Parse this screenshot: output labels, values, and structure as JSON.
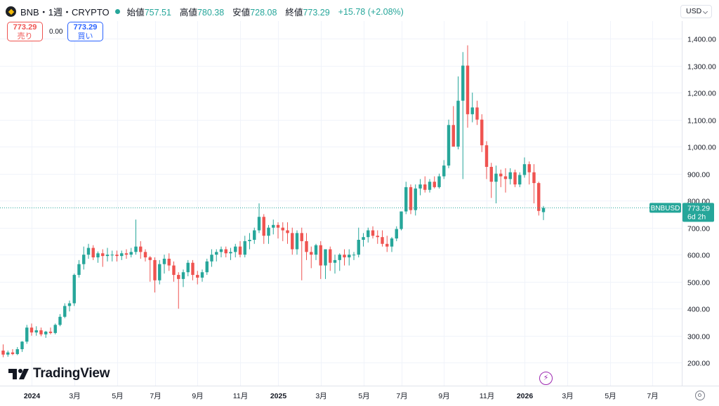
{
  "header": {
    "symbol": "BNB・1週・CRYPTO",
    "open_label": "始値",
    "open_value": "757.51",
    "high_label": "高値",
    "high_value": "780.38",
    "low_label": "安値",
    "low_value": "728.08",
    "close_label": "終値",
    "close_value": "773.29",
    "change": "+15.78 (+2.08%)"
  },
  "trade": {
    "sell_price": "773.29",
    "sell_label": "売り",
    "spread": "0.00",
    "buy_price": "773.29",
    "buy_label": "買い"
  },
  "currency": "USD",
  "branding": "TradingView",
  "colors": {
    "up": "#26a69a",
    "down": "#ef5350",
    "accent_purple": "#9c27b0"
  },
  "chart_data": {
    "type": "candlestick",
    "title": "BNB・1週・CRYPTO",
    "ylim": [
      115,
      1465
    ],
    "y_ticks": [
      {
        "v": 200,
        "label": "200.00"
      },
      {
        "v": 300,
        "label": "300.00"
      },
      {
        "v": 400,
        "label": "400.00"
      },
      {
        "v": 500,
        "label": "500.00"
      },
      {
        "v": 600,
        "label": "600.00"
      },
      {
        "v": 700,
        "label": "700.00"
      },
      {
        "v": 800,
        "label": "800.00"
      },
      {
        "v": 900,
        "label": "900.00"
      },
      {
        "v": 1000,
        "label": "1,000.00"
      },
      {
        "v": 1100,
        "label": "1,100.00"
      },
      {
        "v": 1200,
        "label": "1,200.00"
      },
      {
        "v": 1300,
        "label": "1,300.00"
      },
      {
        "v": 1400,
        "label": "1,400.00"
      }
    ],
    "x_ticks": [
      {
        "i": 6,
        "label": "2024",
        "bold": true
      },
      {
        "i": 15,
        "label": "3月"
      },
      {
        "i": 24,
        "label": "5月"
      },
      {
        "i": 32,
        "label": "7月"
      },
      {
        "i": 41,
        "label": "9月"
      },
      {
        "i": 50,
        "label": "11月"
      },
      {
        "i": 58,
        "label": "2025",
        "bold": true
      },
      {
        "i": 67,
        "label": "3月"
      },
      {
        "i": 76,
        "label": "5月"
      },
      {
        "i": 84,
        "label": "7月"
      },
      {
        "i": 93,
        "label": "9月"
      },
      {
        "i": 102,
        "label": "11月"
      },
      {
        "i": 110,
        "label": "2026",
        "bold": true
      },
      {
        "i": 119,
        "label": "3月"
      },
      {
        "i": 128,
        "label": "5月"
      },
      {
        "i": 137,
        "label": "7月"
      }
    ],
    "last_price": {
      "value": 773.29,
      "symbol": "BNBUSD",
      "label": "773.29",
      "countdown": "6d 2h"
    },
    "candles": [
      [
        245,
        268,
        220,
        230
      ],
      [
        230,
        245,
        222,
        238
      ],
      [
        238,
        250,
        228,
        232
      ],
      [
        232,
        258,
        228,
        250
      ],
      [
        250,
        280,
        240,
        278
      ],
      [
        278,
        340,
        270,
        330
      ],
      [
        330,
        345,
        300,
        312
      ],
      [
        312,
        335,
        300,
        320
      ],
      [
        320,
        330,
        298,
        305
      ],
      [
        305,
        318,
        292,
        315
      ],
      [
        315,
        330,
        305,
        310
      ],
      [
        310,
        345,
        305,
        340
      ],
      [
        340,
        380,
        335,
        370
      ],
      [
        370,
        420,
        365,
        410
      ],
      [
        410,
        430,
        390,
        420
      ],
      [
        420,
        530,
        410,
        525
      ],
      [
        525,
        580,
        515,
        565
      ],
      [
        565,
        630,
        545,
        600
      ],
      [
        600,
        640,
        585,
        625
      ],
      [
        625,
        635,
        580,
        590
      ],
      [
        590,
        612,
        570,
        605
      ],
      [
        605,
        620,
        555,
        595
      ],
      [
        595,
        625,
        575,
        600
      ],
      [
        600,
        615,
        575,
        600
      ],
      [
        600,
        615,
        575,
        595
      ],
      [
        595,
        615,
        580,
        605
      ],
      [
        605,
        620,
        585,
        600
      ],
      [
        600,
        625,
        590,
        610
      ],
      [
        610,
        730,
        600,
        630
      ],
      [
        630,
        650,
        585,
        610
      ],
      [
        610,
        620,
        575,
        590
      ],
      [
        590,
        595,
        500,
        580
      ],
      [
        580,
        590,
        460,
        505
      ],
      [
        505,
        580,
        490,
        565
      ],
      [
        565,
        600,
        530,
        585
      ],
      [
        585,
        605,
        540,
        560
      ],
      [
        560,
        575,
        500,
        525
      ],
      [
        525,
        535,
        400,
        510
      ],
      [
        510,
        545,
        480,
        535
      ],
      [
        535,
        580,
        520,
        570
      ],
      [
        570,
        580,
        505,
        525
      ],
      [
        525,
        540,
        490,
        515
      ],
      [
        515,
        545,
        500,
        535
      ],
      [
        535,
        585,
        525,
        575
      ],
      [
        575,
        620,
        555,
        600
      ],
      [
        600,
        620,
        575,
        610
      ],
      [
        610,
        630,
        590,
        620
      ],
      [
        620,
        630,
        590,
        605
      ],
      [
        605,
        625,
        580,
        610
      ],
      [
        610,
        640,
        590,
        630
      ],
      [
        630,
        650,
        590,
        600
      ],
      [
        600,
        670,
        590,
        650
      ],
      [
        650,
        680,
        620,
        655
      ],
      [
        655,
        700,
        640,
        690
      ],
      [
        690,
        790,
        680,
        740
      ],
      [
        740,
        750,
        640,
        670
      ],
      [
        670,
        710,
        640,
        700
      ],
      [
        700,
        730,
        675,
        710
      ],
      [
        710,
        720,
        660,
        700
      ],
      [
        700,
        720,
        650,
        690
      ],
      [
        690,
        720,
        640,
        680
      ],
      [
        680,
        700,
        600,
        620
      ],
      [
        620,
        690,
        600,
        680
      ],
      [
        680,
        700,
        505,
        650
      ],
      [
        650,
        680,
        580,
        610
      ],
      [
        610,
        630,
        550,
        600
      ],
      [
        600,
        640,
        580,
        635
      ],
      [
        635,
        650,
        510,
        560
      ],
      [
        560,
        615,
        510,
        620
      ],
      [
        620,
        630,
        540,
        570
      ],
      [
        570,
        600,
        530,
        580
      ],
      [
        580,
        605,
        540,
        600
      ],
      [
        600,
        620,
        560,
        590
      ],
      [
        590,
        620,
        560,
        600
      ],
      [
        600,
        610,
        580,
        600
      ],
      [
        600,
        700,
        590,
        655
      ],
      [
        655,
        680,
        630,
        665
      ],
      [
        665,
        700,
        645,
        690
      ],
      [
        690,
        705,
        660,
        670
      ],
      [
        670,
        690,
        640,
        665
      ],
      [
        665,
        690,
        630,
        640
      ],
      [
        640,
        670,
        610,
        630
      ],
      [
        630,
        665,
        610,
        660
      ],
      [
        660,
        705,
        650,
        695
      ],
      [
        695,
        760,
        690,
        760
      ],
      [
        760,
        870,
        750,
        850
      ],
      [
        850,
        860,
        750,
        765
      ],
      [
        765,
        860,
        745,
        845
      ],
      [
        845,
        880,
        820,
        860
      ],
      [
        860,
        890,
        830,
        840
      ],
      [
        840,
        880,
        830,
        870
      ],
      [
        870,
        890,
        845,
        850
      ],
      [
        850,
        900,
        845,
        890
      ],
      [
        890,
        950,
        880,
        930
      ],
      [
        930,
        1100,
        920,
        1080
      ],
      [
        1080,
        1150,
        1000,
        1000
      ],
      [
        1000,
        1260,
        990,
        1170
      ],
      [
        1170,
        1350,
        880,
        1300
      ],
      [
        1300,
        1375,
        1070,
        1120
      ],
      [
        1120,
        1200,
        1090,
        1145
      ],
      [
        1145,
        1170,
        1080,
        1100
      ],
      [
        1100,
        1120,
        980,
        1005
      ],
      [
        1005,
        1020,
        880,
        925
      ],
      [
        925,
        940,
        810,
        870
      ],
      [
        870,
        930,
        790,
        900
      ],
      [
        900,
        915,
        850,
        890
      ],
      [
        890,
        920,
        830,
        880
      ],
      [
        880,
        920,
        860,
        905
      ],
      [
        905,
        915,
        850,
        860
      ],
      [
        860,
        905,
        850,
        895
      ],
      [
        895,
        960,
        885,
        935
      ],
      [
        935,
        945,
        860,
        905
      ],
      [
        905,
        935,
        790,
        865
      ],
      [
        865,
        870,
        745,
        762
      ],
      [
        757.51,
        780.38,
        728.08,
        773.29
      ]
    ]
  }
}
